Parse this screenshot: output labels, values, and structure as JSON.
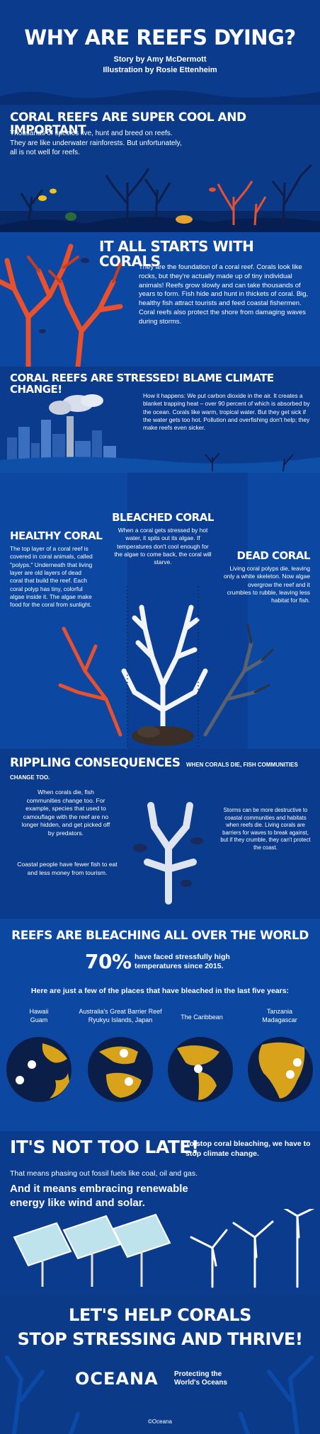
{
  "header": {
    "title": "WHY ARE REEFS DYING?",
    "byline": "Story by Amy McDermott",
    "illustration": "Illustration by Rosie Ettenheim"
  },
  "sec1": {
    "heading": "CORAL REEFS ARE SUPER COOL AND IMPORTANT",
    "line1": "Thousands of species live, hunt and breed on reefs.",
    "line2": "They are like underwater rainforests. But unfortunately,",
    "line3": "all is not well for reefs."
  },
  "sec2": {
    "heading": "IT ALL STARTS WITH CORALS",
    "body": "They are the foundation of a coral reef. Corals look like rocks, but they're actually made up of tiny individual animals! Reefs grow slowly and can take thousands of years to form. Fish hide and hunt in thickets of coral. Big, healthy fish attract tourists and feed coastal fishermen. Coral reefs also protect the shore from damaging waves during storms."
  },
  "sec3": {
    "heading": "CORAL REEFS ARE STRESSED! BLAME CLIMATE CHANGE!",
    "body": "How it happens: We put carbon dioxide in the air. It creates a blanket trapping heat – over 90 percent of which is absorbed by the ocean. Corals like warm, tropical water. But they get sick if the water gets too hot. Pollution and overfishing don't help; they make reefs even sicker."
  },
  "sec4": {
    "healthy_heading": "HEALTHY CORAL",
    "healthy_body": "The top layer of a coral reef is covered in coral animals, called \"polyps.\" Underneath that living layer are old layers of dead coral that build the reef. Each coral polyp has tiny, colorful algae inside it. The algae make food for the coral from sunlight.",
    "bleached_heading": "BLEACHED CORAL",
    "bleached_body": "When a coral gets stressed by hot water, it spits out its algae. If temperatures don't cool enough for the algae to come back, the coral will starve.",
    "dead_heading": "DEAD CORAL",
    "dead_body": "Living coral polyps die, leaving only a white skeleton. Now algae overgrow the reef and it crumbles to rubble, leaving less habitat for fish."
  },
  "sec5": {
    "heading": "RIPPLING CONSEQUENCES",
    "subheading": "WHEN CORALS DIE, FISH COMMUNITIES CHANGE TOO.",
    "left1": "When corals die, fish communities change too. For example, species that used to camouflage with the reef are no longer hidden, and get picked off by predators.",
    "left2": "Coastal people have fewer fish to eat and less money from tourism.",
    "right1": "Storms can be more destructive to coastal communities and habitats when reefs die. Living corals are barriers for waves to break against, but if they crumble, they can't protect the coast."
  },
  "sec6": {
    "heading": "REEFS ARE BLEACHING ALL OVER THE WORLD",
    "stat": "70%",
    "stat_text": "have faced stressfully high temperatures since 2015.",
    "intro": "Here are just a few of the places that have bleached in the last five years:",
    "places": [
      {
        "l1": "Hawaii",
        "l2": "Guam"
      },
      {
        "l1": "Australia's Great Barrier Reef",
        "l2": "Ryukyu Islands, Japan"
      },
      {
        "l1": "The Caribbean",
        "l2": ""
      },
      {
        "l1": "Tanzania",
        "l2": "Madagascar"
      }
    ]
  },
  "sec7": {
    "heading": "IT'S NOT TOO LATE!",
    "side": "To stop coral bleaching, we have to stop climate change.",
    "line1": "That means phasing out fossil fuels like coal, oil and gas.",
    "line2": "And it means embracing renewable energy like wind and solar."
  },
  "footer": {
    "heading1": "LET'S HELP CORALS",
    "heading2": "STOP STRESSING AND THRIVE!",
    "brand": "OCEANA",
    "tag1": "Protecting the",
    "tag2": "World's Oceans",
    "credit": "©Oceana"
  },
  "colors": {
    "navy": "#0b3b8c",
    "deep": "#072b6c",
    "coral": "#e8502e",
    "gold": "#d9a21b",
    "cream": "#e9e2d3"
  }
}
